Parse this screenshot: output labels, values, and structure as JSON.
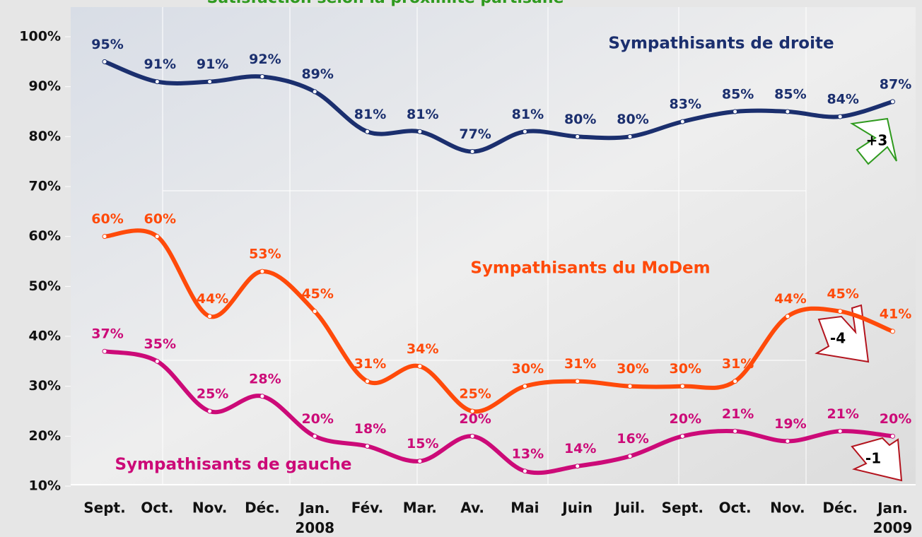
{
  "chart_data": {
    "type": "line",
    "title": "Satisfaction selon la proximité partisane",
    "categories": [
      "Sept.",
      "Oct.",
      "Nov.",
      "Déc.",
      "Jan.\n2008",
      "Fév.",
      "Mar.",
      "Av.",
      "Mai",
      "Juin",
      "Juil.",
      "Sept.",
      "Oct.",
      "Nov.",
      "Déc.",
      "Jan.\n2009"
    ],
    "series": [
      {
        "name": "Sympathisants de droite",
        "color": "#1b2f6e",
        "values": [
          95,
          91,
          91,
          92,
          89,
          81,
          81,
          77,
          81,
          80,
          80,
          83,
          85,
          85,
          84,
          87
        ],
        "value_labels": [
          "95%",
          "91%",
          "91%",
          "92%",
          "89%",
          "81%",
          "81%",
          "77%",
          "81%",
          "80%",
          "80%",
          "83%",
          "85%",
          "85%",
          "84%",
          "87%"
        ]
      },
      {
        "name": "Sympathisants du MoDem",
        "color": "#ff4a0a",
        "values": [
          60,
          60,
          44,
          53,
          45,
          31,
          34,
          25,
          30,
          31,
          30,
          30,
          31,
          44,
          45,
          41
        ],
        "value_labels": [
          "60%",
          "60%",
          "44%",
          "53%",
          "45%",
          "31%",
          "34%",
          "25%",
          "30%",
          "31%",
          "30%",
          "30%",
          "31%",
          "44%",
          "45%",
          "41%"
        ]
      },
      {
        "name": "Sympathisants de gauche",
        "color": "#cc0a78",
        "values": [
          37,
          35,
          25,
          28,
          20,
          18,
          15,
          20,
          13,
          14,
          16,
          20,
          21,
          19,
          21,
          20
        ],
        "value_labels": [
          "37%",
          "35%",
          "25%",
          "28%",
          "20%",
          "18%",
          "15%",
          "20%",
          "13%",
          "14%",
          "16%",
          "20%",
          "21%",
          "19%",
          "21%",
          "20%"
        ]
      }
    ],
    "ylim": [
      10,
      100
    ],
    "yticks": [
      {
        "value": 10,
        "label": "10%"
      },
      {
        "value": 20,
        "label": "20%"
      },
      {
        "value": 30,
        "label": "30%"
      },
      {
        "value": 40,
        "label": "40%"
      },
      {
        "value": 50,
        "label": "50%"
      },
      {
        "value": 60,
        "label": "60%"
      },
      {
        "value": 70,
        "label": "70%"
      },
      {
        "value": 80,
        "label": "80%"
      },
      {
        "value": 90,
        "label": "90%"
      },
      {
        "value": 100,
        "label": "100%"
      }
    ],
    "annotations": [
      "+3",
      "-4",
      "-1"
    ]
  }
}
